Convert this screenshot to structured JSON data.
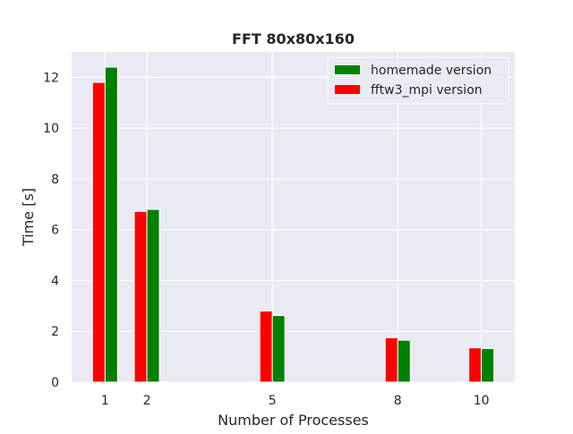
{
  "chart_data": {
    "type": "bar",
    "title": "FFT 80x80x160",
    "xlabel": "Number of Processes",
    "ylabel": "Time [s]",
    "x": [
      1,
      2,
      5,
      8,
      10
    ],
    "xticks": [
      "1",
      "2",
      "5",
      "8",
      "10"
    ],
    "xlim": [
      0.2,
      10.8
    ],
    "ylim": [
      0,
      13
    ],
    "yticks": [
      0,
      2,
      4,
      6,
      8,
      10,
      12
    ],
    "grid": true,
    "legend_position": "top-right",
    "series": [
      {
        "name": "fftw3_mpi version",
        "color": "#ff0000",
        "values": [
          11.8,
          6.72,
          2.8,
          1.75,
          1.35
        ]
      },
      {
        "name": "homemade version",
        "color": "#008000",
        "values": [
          12.4,
          6.8,
          2.62,
          1.65,
          1.32
        ]
      }
    ],
    "legend_order": [
      "homemade version",
      "fftw3_mpi version"
    ],
    "plot_background": "#eaeaf2"
  }
}
